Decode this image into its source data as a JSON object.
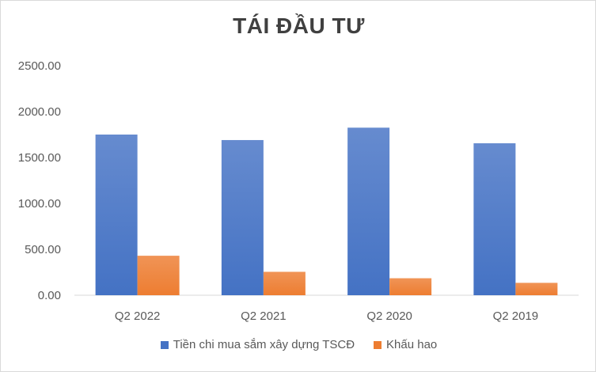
{
  "chart_data": {
    "type": "bar",
    "title": "TÁI ĐẦU TƯ",
    "xlabel": "",
    "ylabel": "",
    "categories": [
      "Q2 2022",
      "Q2 2021",
      "Q2 2020",
      "Q2 2019"
    ],
    "series": [
      {
        "name": "Tiền chi mua sắm xây dựng TSCĐ",
        "values": [
          1750,
          1690,
          1825,
          1655
        ],
        "color": "#4472C4"
      },
      {
        "name": "Khấu hao",
        "values": [
          430,
          255,
          185,
          135
        ],
        "color": "#ED7D31"
      }
    ],
    "ylim": [
      0,
      2500
    ],
    "yticks": [
      "0.00",
      "500.00",
      "1000.00",
      "1500.00",
      "2000.00",
      "2500.00"
    ],
    "grid": false,
    "legend_position": "bottom"
  }
}
